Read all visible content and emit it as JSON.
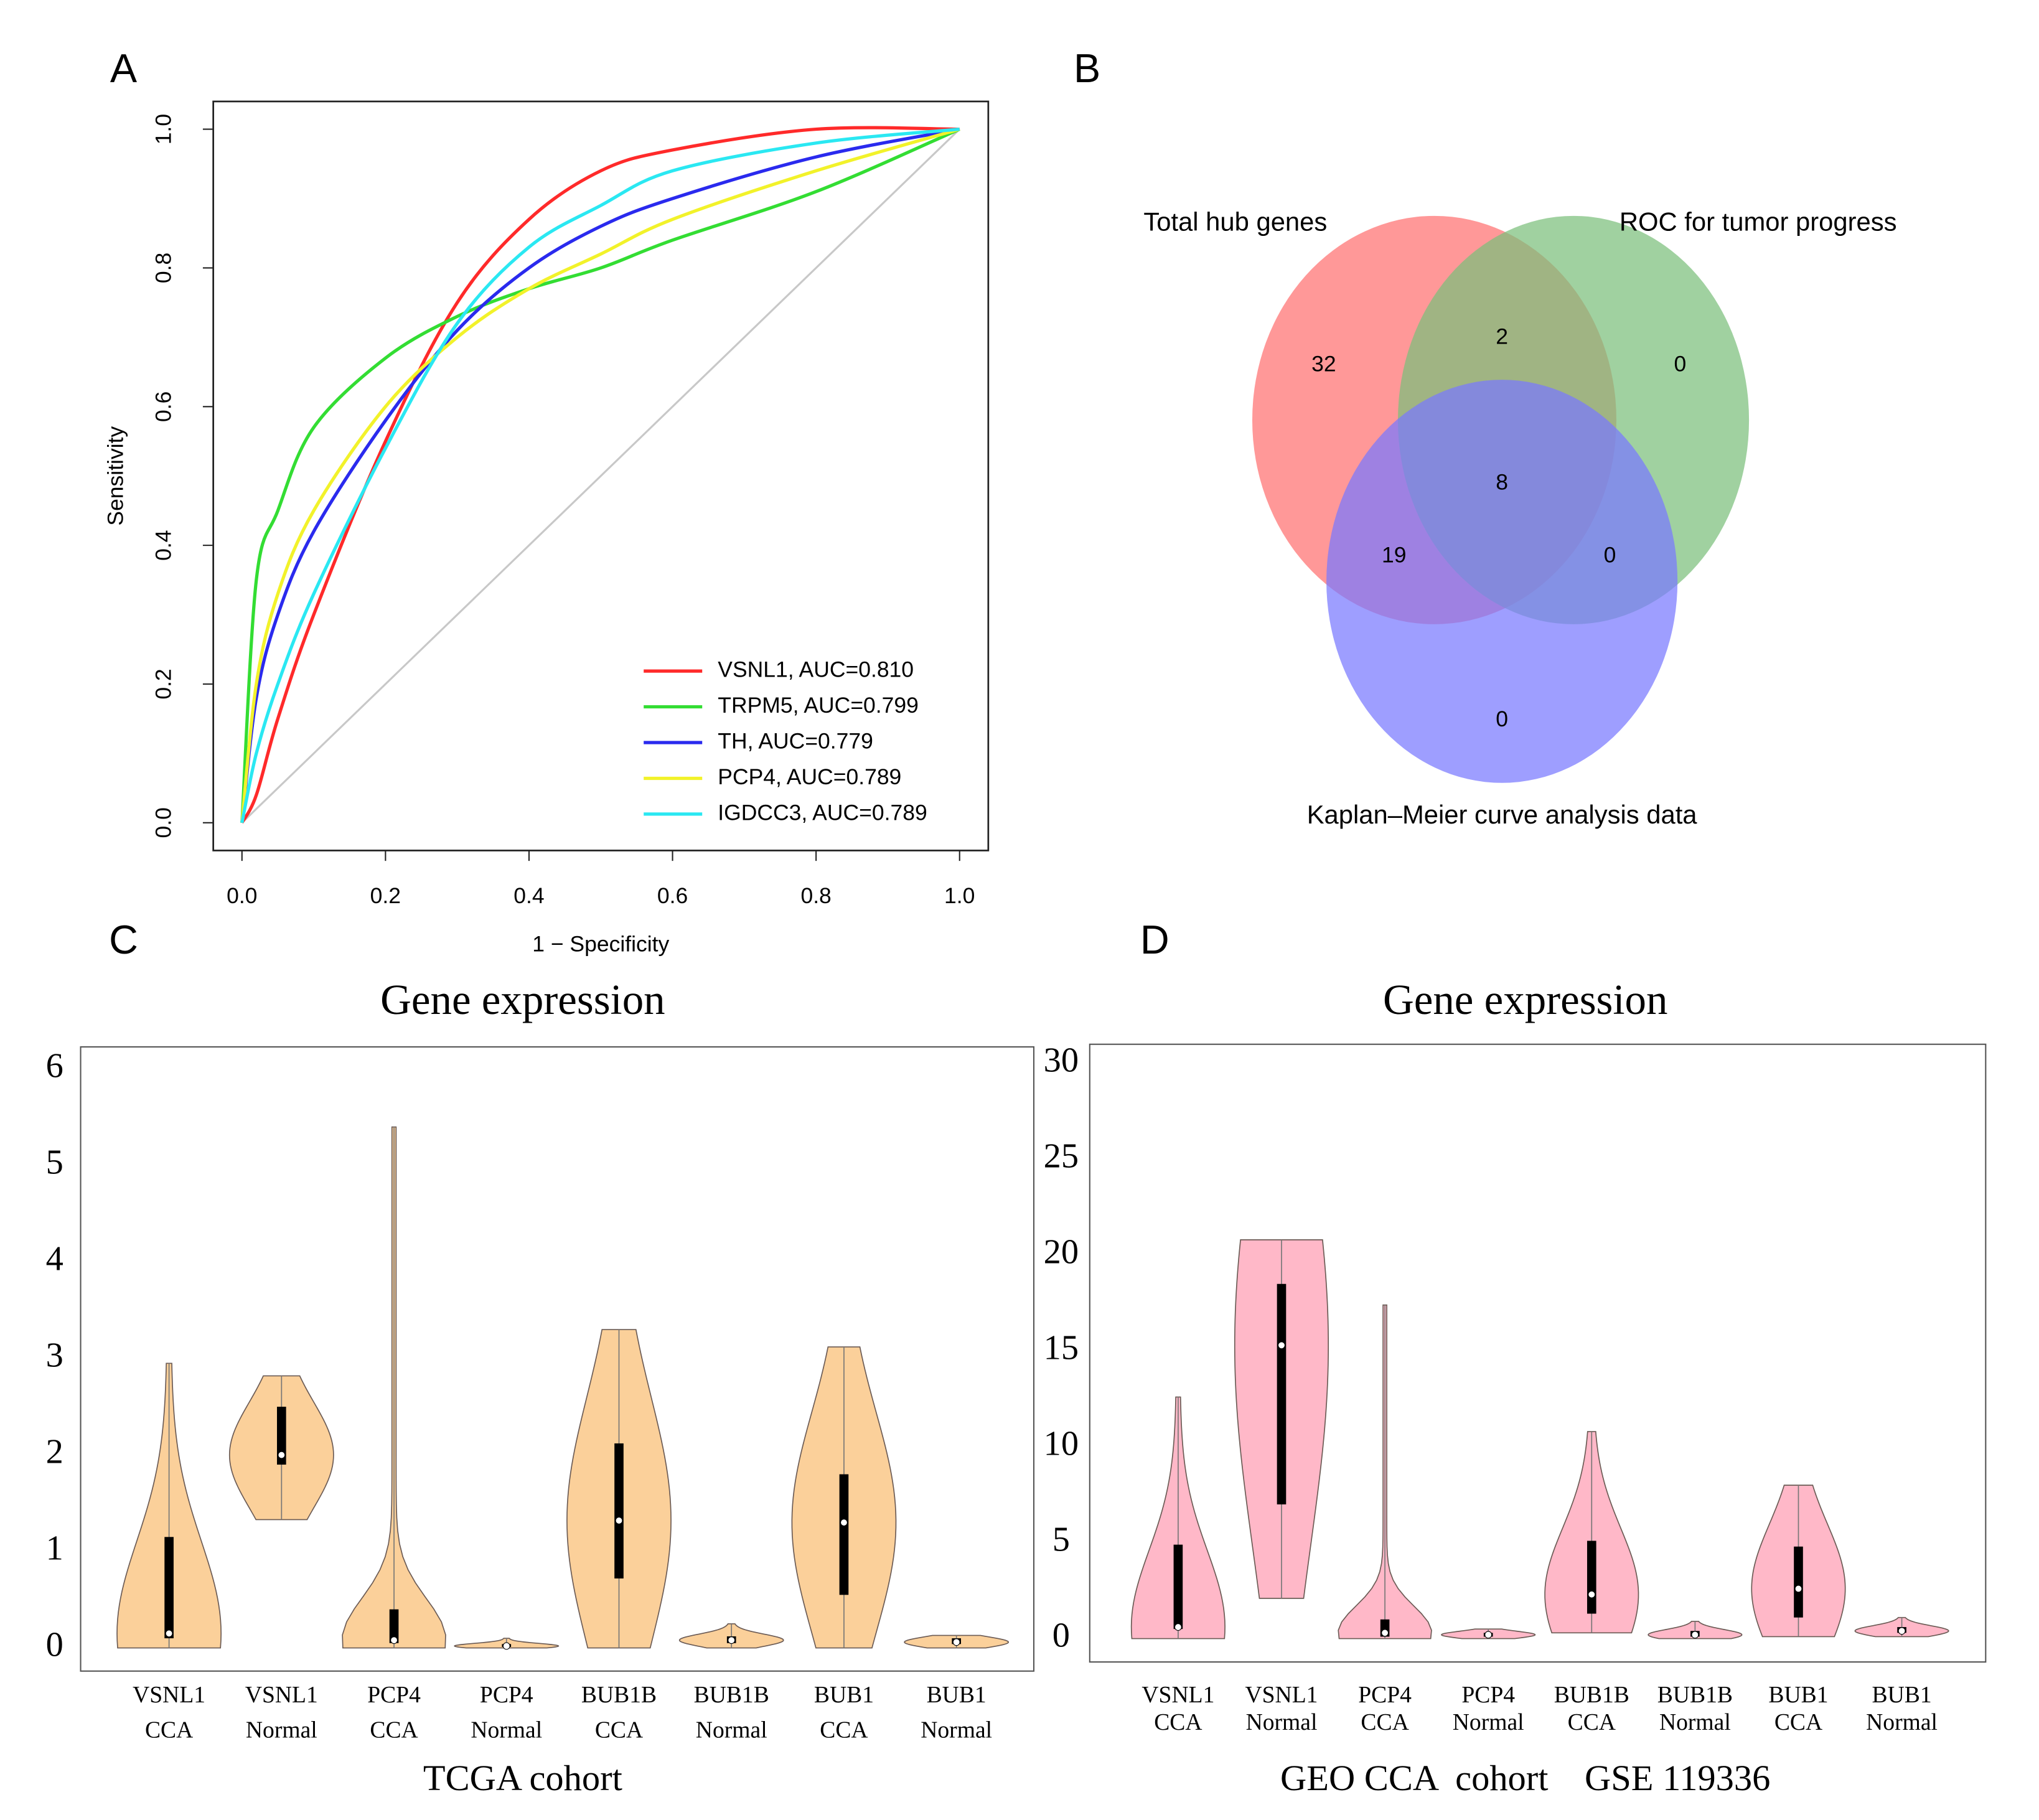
{
  "chart_data": [
    {
      "type": "line",
      "panel": "A",
      "x_label": "1 − Specificity",
      "y_label": "Sensitivity",
      "xlim": [
        -0.04,
        1.04
      ],
      "ylim": [
        -0.04,
        1.04
      ],
      "xticks": [
        {
          "value": 0,
          "label": "0.0"
        },
        0.2,
        0.4,
        0.6,
        0.8,
        {
          "value": 1,
          "label": "1.0"
        }
      ],
      "yticks": [
        {
          "value": 0,
          "label": "0.0"
        },
        0.2,
        0.4,
        0.6,
        0.8,
        {
          "value": 1,
          "label": "1.0"
        }
      ],
      "legend": "bottom-right",
      "x": [
        0,
        0.02,
        0.05,
        0.1,
        0.2,
        0.3,
        0.4,
        0.5,
        0.6,
        0.8,
        1
      ],
      "series": [
        {
          "name": "VSNL1, AUC=0.810",
          "color": "#ff2a2a",
          "values": [
            0,
            0.04,
            0.15,
            0.3,
            0.55,
            0.75,
            0.87,
            0.94,
            0.97,
            1.0,
            1
          ]
        },
        {
          "name": "TRPM5, AUC=0.799",
          "color": "#33dd33",
          "values": [
            0,
            0.35,
            0.45,
            0.57,
            0.67,
            0.73,
            0.77,
            0.8,
            0.84,
            0.91,
            1
          ]
        },
        {
          "name": "TH, AUC=0.779",
          "color": "#2a2aee",
          "values": [
            0,
            0.18,
            0.3,
            0.42,
            0.58,
            0.71,
            0.8,
            0.86,
            0.9,
            0.96,
            1
          ]
        },
        {
          "name": "PCP4, AUC=0.789",
          "color": "#f2f22a",
          "values": [
            0,
            0.2,
            0.33,
            0.45,
            0.6,
            0.7,
            0.77,
            0.82,
            0.87,
            0.94,
            1
          ]
        },
        {
          "name": "IGDCC3, AUC=0.789",
          "color": "#2ae8f2",
          "values": [
            0,
            0.1,
            0.2,
            0.33,
            0.54,
            0.72,
            0.83,
            0.89,
            0.94,
            0.98,
            1
          ]
        }
      ]
    },
    {
      "type": "venn",
      "panel": "B",
      "sets": [
        {
          "name": "Total hub genes",
          "color": "#ff7070"
        },
        {
          "name": "ROC for tumor progress",
          "color": "#7cbf7c"
        },
        {
          "name": "Kaplan–Meier curve analysis data",
          "color": "#7878ff"
        }
      ],
      "values": [
        32,
        2,
        0,
        8,
        19,
        0,
        0
      ]
    },
    {
      "type": "violin",
      "panel": "C",
      "title": "Gene expression",
      "x_label": "TCGA cohort",
      "color": "#fbd09a",
      "ylim": [
        -0.24,
        6.23
      ],
      "yticks": [
        0,
        1,
        2,
        3,
        4,
        5,
        6
      ],
      "grid": false,
      "categories": [
        [
          "VSNL1",
          "CCA"
        ],
        [
          "VSNL1",
          "Normal"
        ],
        [
          "PCP4",
          "CCA"
        ],
        [
          "PCP4",
          "Normal"
        ],
        [
          "BUB1B",
          "CCA"
        ],
        [
          "BUB1B",
          "Normal"
        ],
        [
          "BUB1",
          "CCA"
        ],
        [
          "BUB1",
          "Normal"
        ]
      ],
      "stats": [
        {
          "min": 0,
          "q1": 0.1,
          "median": 0.15,
          "q3": 1.15,
          "max": 2.95
        },
        {
          "min": 1.33,
          "q1": 1.9,
          "median": 2.0,
          "q3": 2.5,
          "max": 2.82
        },
        {
          "min": 0,
          "q1": 0.05,
          "median": 0.08,
          "q3": 0.4,
          "max": 5.4
        },
        {
          "min": 0,
          "q1": 0.01,
          "median": 0.02,
          "q3": 0.04,
          "max": 0.1
        },
        {
          "min": 0,
          "q1": 0.72,
          "median": 1.32,
          "q3": 2.12,
          "max": 3.3
        },
        {
          "min": 0,
          "q1": 0.05,
          "median": 0.08,
          "q3": 0.12,
          "max": 0.25
        },
        {
          "min": 0,
          "q1": 0.55,
          "median": 1.3,
          "q3": 1.8,
          "max": 3.12
        },
        {
          "min": 0,
          "q1": 0.04,
          "median": 0.06,
          "q3": 0.1,
          "max": 0.13
        }
      ]
    },
    {
      "type": "violin",
      "panel": "D",
      "title": "Gene expression",
      "x_label": "GEO CCA  cohort    GSE 119336",
      "color": "#ffb8c8",
      "ylim": [
        -1.22,
        31
      ],
      "yticks": [
        0,
        5,
        10,
        15,
        20,
        25,
        30
      ],
      "grid": false,
      "categories": [
        [
          "VSNL1",
          "CCA"
        ],
        [
          "VSNL1",
          "Normal"
        ],
        [
          "PCP4",
          "CCA"
        ],
        [
          "PCP4",
          "Normal"
        ],
        [
          "BUB1B",
          "CCA"
        ],
        [
          "BUB1B",
          "Normal"
        ],
        [
          "BUB1",
          "CCA"
        ],
        [
          "BUB1",
          "Normal"
        ]
      ],
      "stats": [
        {
          "min": 0,
          "q1": 0.5,
          "median": 0.6,
          "q3": 4.9,
          "max": 12.6
        },
        {
          "min": 2.1,
          "q1": 7,
          "median": 15.3,
          "q3": 18.5,
          "max": 20.8
        },
        {
          "min": 0,
          "q1": 0.1,
          "median": 0.3,
          "q3": 1.0,
          "max": 17.4
        },
        {
          "min": 0,
          "q1": 0.1,
          "median": 0.2,
          "q3": 0.3,
          "max": 0.5
        },
        {
          "min": 0.3,
          "q1": 1.3,
          "median": 2.3,
          "q3": 5.1,
          "max": 10.8
        },
        {
          "min": 0,
          "q1": 0.1,
          "median": 0.2,
          "q3": 0.4,
          "max": 0.9
        },
        {
          "min": 0.1,
          "q1": 1.1,
          "median": 2.6,
          "q3": 4.8,
          "max": 8.0
        },
        {
          "min": 0.1,
          "q1": 0.3,
          "median": 0.4,
          "q3": 0.6,
          "max": 1.1
        }
      ]
    }
  ]
}
